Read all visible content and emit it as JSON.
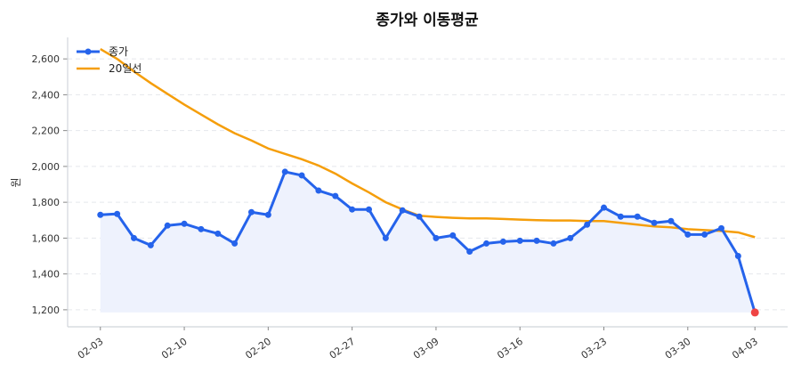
{
  "chart_data": {
    "type": "line",
    "title": "종가와 이동평균",
    "xlabel": "",
    "ylabel": "원",
    "ylim": [
      1105,
      2720
    ],
    "yticks": [
      1200,
      1400,
      1600,
      1800,
      2000,
      2200,
      2400,
      2600
    ],
    "ytick_labels": [
      "1,200",
      "1,400",
      "1,600",
      "1,800",
      "2,000",
      "2,200",
      "2,400",
      "2,600"
    ],
    "grid": "horizontal dashed",
    "legend_position": "top-left",
    "x": [
      "02-03",
      "02-04",
      "02-05",
      "02-06",
      "02-09",
      "02-10",
      "02-11",
      "02-12",
      "02-13",
      "02-19",
      "02-20",
      "02-23",
      "02-24",
      "02-25",
      "02-26",
      "02-27",
      "03-03",
      "03-04",
      "03-05",
      "03-06",
      "03-09",
      "03-10",
      "03-11",
      "03-12",
      "03-13",
      "03-16",
      "03-17",
      "03-18",
      "03-19",
      "03-20",
      "03-23",
      "03-24",
      "03-25",
      "03-26",
      "03-27",
      "03-30",
      "03-31",
      "04-01",
      "04-02",
      "04-03"
    ],
    "xtick_labels": [
      "02-03",
      "02-10",
      "02-20",
      "02-27",
      "03-09",
      "03-16",
      "03-23",
      "03-30",
      "04-03"
    ],
    "series": [
      {
        "name": "종가",
        "color": "#2563eb",
        "marker": "circle",
        "fill": "#eef2fd",
        "values": [
          1730,
          1735,
          1600,
          1560,
          1670,
          1680,
          1650,
          1625,
          1570,
          1745,
          1730,
          1970,
          1950,
          1865,
          1835,
          1760,
          1760,
          1600,
          1755,
          1720,
          1600,
          1615,
          1525,
          1570,
          1580,
          1585,
          1585,
          1570,
          1600,
          1675,
          1770,
          1720,
          1720,
          1685,
          1695,
          1620,
          1620,
          1655,
          1500,
          1185
        ]
      },
      {
        "name": "20일선",
        "color": "#f59e0b",
        "values": [
          2655,
          2600,
          2530,
          2465,
          2405,
          2345,
          2290,
          2235,
          2185,
          2145,
          2100,
          2070,
          2040,
          2005,
          1960,
          1905,
          1855,
          1800,
          1760,
          1725,
          1718,
          1713,
          1710,
          1710,
          1707,
          1703,
          1700,
          1698,
          1698,
          1695,
          1695,
          1685,
          1675,
          1665,
          1660,
          1650,
          1645,
          1640,
          1632,
          1605
        ]
      }
    ],
    "highlight_last_point_color": "#ef4444"
  }
}
